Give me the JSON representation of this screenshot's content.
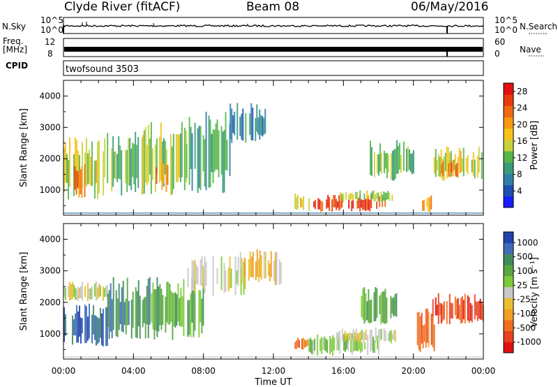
{
  "header": {
    "station": "Clyde River (fitACF)",
    "beam": "Beam 08",
    "date": "06/May/2016"
  },
  "top_panels": {
    "nsky_label": "N.Sky",
    "nsearch_label": "N.Search",
    "nsky_ticks": [
      "10^5",
      "10^0"
    ],
    "nsearch_ticks": [
      "10^5",
      "10^0"
    ],
    "freq_label": "Freq.",
    "freq_unit": "[MHz]",
    "freq_ticks": [
      "12",
      "8"
    ],
    "nave_label": "Nave",
    "nave_ticks": [
      "60",
      "0"
    ],
    "cpid_label": "CPID",
    "cpid_value": "twofsound 3503"
  },
  "colors": {
    "power_scale": [
      "#1a1aff",
      "#1e4fb0",
      "#2f7fa8",
      "#3a9b78",
      "#58b64a",
      "#c8d23a",
      "#f5c21a",
      "#f79a10",
      "#f06a10",
      "#e83a10",
      "#e01010"
    ],
    "velocity_scale": [
      "#2244aa",
      "#3f6bb8",
      "#3f8c5a",
      "#57a640",
      "#7ccc3a",
      "#c8c8c8",
      "#e8c030",
      "#f0a020",
      "#f07020",
      "#e84020",
      "#e01010"
    ]
  },
  "chart_data": [
    {
      "type": "heatmap",
      "name": "power",
      "ylabel": "Slant Range [km]",
      "xlabel": "",
      "yticks": [
        1000,
        2000,
        3000,
        4000
      ],
      "ylim": [
        200,
        4500
      ],
      "xlim_hours": [
        0,
        24
      ],
      "colorbar": {
        "label": "Power [dB]",
        "ticks": [
          4,
          8,
          12,
          16,
          20,
          24,
          28
        ],
        "range": [
          0,
          30
        ]
      },
      "regions": [
        {
          "t0": 0.0,
          "t1": 2.0,
          "r0": 700,
          "r1": 2700,
          "v": 16
        },
        {
          "t0": 0.3,
          "t1": 1.2,
          "r0": 700,
          "r1": 2000,
          "v": 24
        },
        {
          "t0": 2.0,
          "t1": 4.5,
          "r0": 800,
          "r1": 3000,
          "v": 12
        },
        {
          "t0": 4.5,
          "t1": 7.0,
          "r0": 800,
          "r1": 3200,
          "v": 14
        },
        {
          "t0": 5.2,
          "t1": 6.0,
          "r0": 900,
          "r1": 2200,
          "v": 22
        },
        {
          "t0": 7.0,
          "t1": 9.5,
          "r0": 900,
          "r1": 3500,
          "v": 10
        },
        {
          "t0": 9.5,
          "t1": 11.5,
          "r0": 2500,
          "r1": 3800,
          "v": 8
        },
        {
          "t0": 13.2,
          "t1": 14.0,
          "r0": 300,
          "r1": 900,
          "v": 18
        },
        {
          "t0": 14.2,
          "t1": 18.5,
          "r0": 300,
          "r1": 850,
          "v": 27
        },
        {
          "t0": 15.8,
          "t1": 18.8,
          "r0": 600,
          "r1": 1000,
          "v": 14
        },
        {
          "t0": 17.5,
          "t1": 20.0,
          "r0": 1300,
          "r1": 2600,
          "v": 12
        },
        {
          "t0": 20.5,
          "t1": 21.0,
          "r0": 300,
          "r1": 900,
          "v": 22
        },
        {
          "t0": 21.0,
          "t1": 24.0,
          "r0": 1300,
          "r1": 2400,
          "v": 16
        },
        {
          "t0": 21.5,
          "t1": 22.5,
          "r0": 1400,
          "r1": 2000,
          "v": 24
        }
      ]
    },
    {
      "type": "heatmap",
      "name": "velocity",
      "ylabel": "Slant Range [km]",
      "xlabel": "Time UT",
      "xticks": [
        "00:00",
        "04:00",
        "08:00",
        "12:00",
        "16:00",
        "20:00",
        "00:00"
      ],
      "xtick_hours": [
        0,
        4,
        8,
        12,
        16,
        20,
        24
      ],
      "yticks": [
        1000,
        2000,
        3000,
        4000
      ],
      "ylim": [
        200,
        4500
      ],
      "xlim_hours": [
        0,
        24
      ],
      "colorbar": {
        "label": "Velocity [m s⁻¹]",
        "ticks": [
          "1000",
          "500",
          "100",
          "25",
          "-25",
          "-100",
          "-500",
          "-1000"
        ]
      },
      "regions": [
        {
          "t0": 0.0,
          "t1": 2.5,
          "r0": 600,
          "r1": 2000,
          "v": 1
        },
        {
          "t0": 0.0,
          "t1": 2.5,
          "r0": 2000,
          "r1": 2700,
          "v": 5
        },
        {
          "t0": 2.5,
          "t1": 5.0,
          "r0": 800,
          "r1": 2800,
          "v": 2
        },
        {
          "t0": 5.0,
          "t1": 8.0,
          "r0": 800,
          "r1": 2800,
          "v": 3
        },
        {
          "t0": 7.0,
          "t1": 10.5,
          "r0": 2200,
          "r1": 3500,
          "v": 5
        },
        {
          "t0": 10.0,
          "t1": 12.5,
          "r0": 2500,
          "r1": 3700,
          "v": 6
        },
        {
          "t0": 13.2,
          "t1": 14.0,
          "r0": 500,
          "r1": 900,
          "v": 8
        },
        {
          "t0": 14.0,
          "t1": 18.0,
          "r0": 300,
          "r1": 1000,
          "v": 4
        },
        {
          "t0": 15.5,
          "t1": 19.0,
          "r0": 700,
          "r1": 1200,
          "v": 5
        },
        {
          "t0": 17.0,
          "t1": 19.0,
          "r0": 1300,
          "r1": 2500,
          "v": 3
        },
        {
          "t0": 20.2,
          "t1": 21.2,
          "r0": 400,
          "r1": 1800,
          "v": 8
        },
        {
          "t0": 21.0,
          "t1": 24.0,
          "r0": 1300,
          "r1": 2300,
          "v": 9
        }
      ]
    }
  ]
}
